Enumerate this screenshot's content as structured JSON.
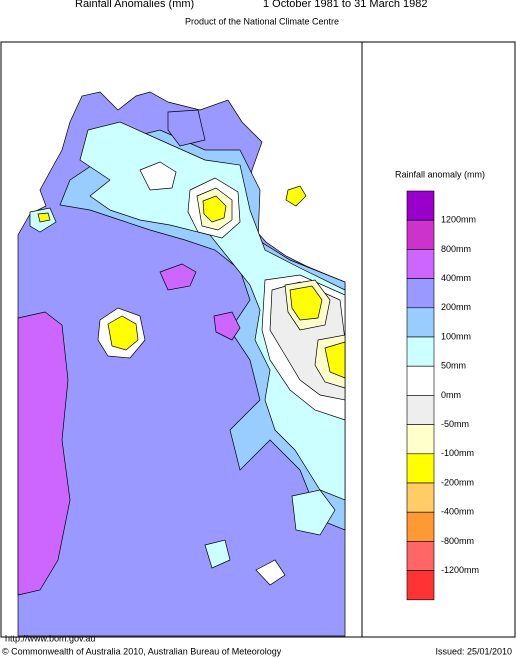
{
  "header": {
    "title": "Rainfall Anomalies (mm)",
    "period": "1 October 1981 to 31 March 1982",
    "subtitle": "Product of the National Climate Centre"
  },
  "legend": {
    "title": "Rainfall anomaly (mm)",
    "colors": [
      "#9900cc",
      "#cc33cc",
      "#cc66ff",
      "#9999ff",
      "#99ccff",
      "#ccffff",
      "#ffffff",
      "#eeeeee",
      "#ffffcc",
      "#ffff00",
      "#ffcc66",
      "#ff9933",
      "#ff6666",
      "#ff3333"
    ],
    "labels": [
      "1200mm",
      "800mm",
      "400mm",
      "200mm",
      "100mm",
      "50mm",
      "0mm",
      "-50mm",
      "-100mm",
      "-200mm",
      "-400mm",
      "-800mm",
      "-1200mm"
    ]
  },
  "footer": {
    "url": "http://www.bom.gov.au",
    "copyright": "© Commonwealth of Australia 2010, Australian Bureau of Meteorology",
    "issued": "Issued: 25/01/2010"
  }
}
